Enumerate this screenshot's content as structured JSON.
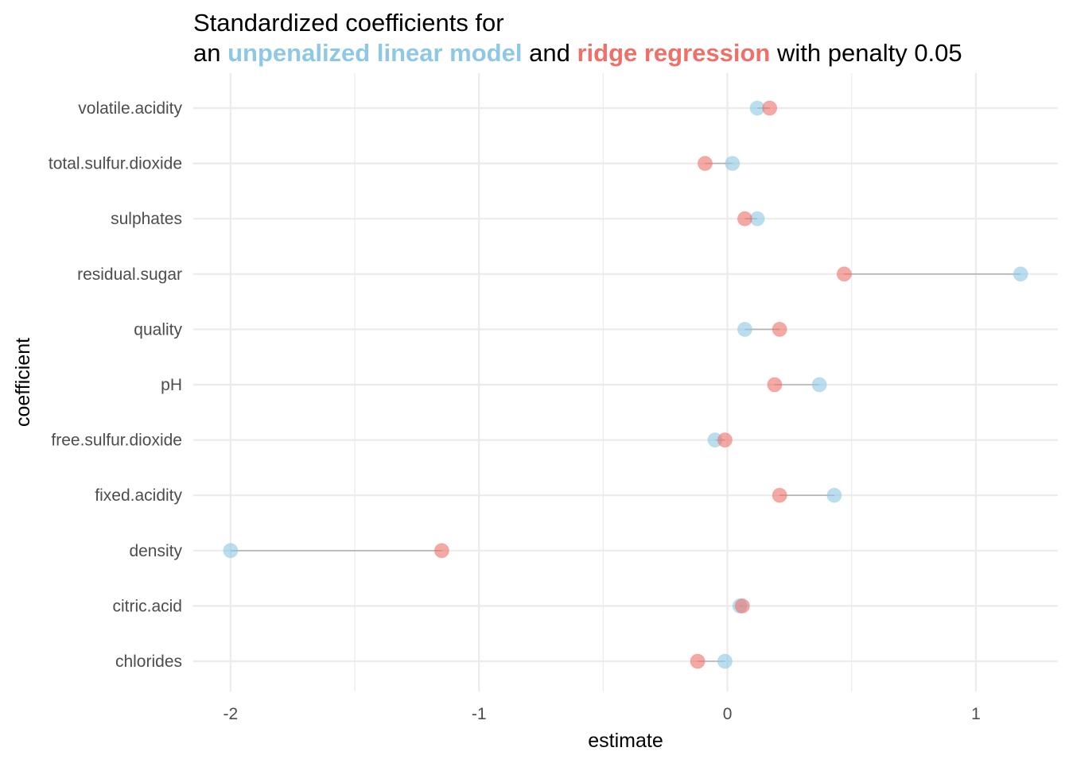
{
  "title": {
    "line1": "Standardized coefficients for",
    "line2_prefix": "an",
    "highlight_a": "unpenalized linear model",
    "middle": "and",
    "highlight_b": "ridge regression",
    "suffix": "with penalty 0.05"
  },
  "colors": {
    "unpenalized": "#8ec8e4",
    "ridge": "#ee7068",
    "segment": "#b3b3b3",
    "grid": "#ebebeb"
  },
  "chart_data": {
    "type": "scatter",
    "subtype": "dumbbell",
    "xlabel": "estimate",
    "ylabel": "coefficient",
    "xlim": [
      -2.15,
      1.33
    ],
    "x_ticks": [
      -2,
      -1,
      0,
      1
    ],
    "x_tick_labels": [
      "-2",
      "-1",
      "0",
      "1"
    ],
    "grid": true,
    "legend": "none (colors explained in title)",
    "categories": [
      "chlorides",
      "citric.acid",
      "density",
      "fixed.acidity",
      "free.sulfur.dioxide",
      "pH",
      "quality",
      "residual.sugar",
      "sulphates",
      "total.sulfur.dioxide",
      "volatile.acidity"
    ],
    "series": [
      {
        "key": "unpenalized",
        "values": [
          -0.01,
          0.05,
          -2.0,
          0.43,
          -0.05,
          0.37,
          0.07,
          1.18,
          0.12,
          0.02,
          0.12
        ]
      },
      {
        "key": "ridge",
        "values": [
          -0.12,
          0.06,
          -1.15,
          0.21,
          -0.01,
          0.19,
          0.21,
          0.47,
          0.07,
          -0.09,
          0.17
        ]
      }
    ]
  }
}
